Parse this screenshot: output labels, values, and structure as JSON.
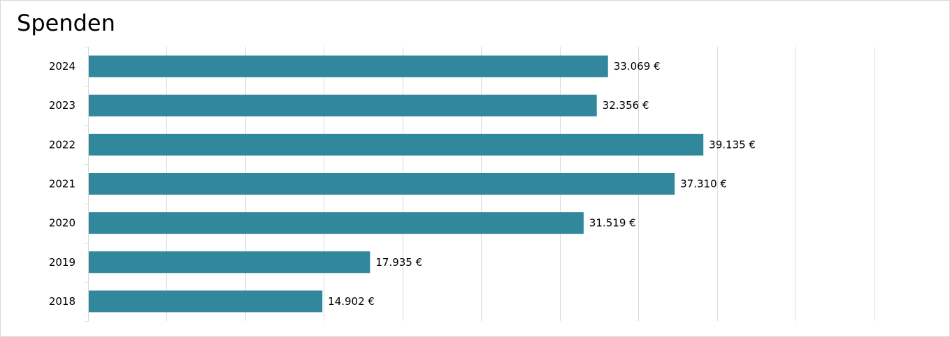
{
  "chart_data": {
    "type": "bar",
    "orientation": "horizontal",
    "title": "Spenden",
    "xlabel": "",
    "ylabel": "",
    "categories": [
      "2024",
      "2023",
      "2022",
      "2021",
      "2020",
      "2019",
      "2018"
    ],
    "values": [
      33069,
      32356,
      39135,
      37310,
      31519,
      17935,
      14902
    ],
    "data_labels": [
      "33.069 €",
      "32.356 €",
      "39.135 €",
      "37.310 €",
      "31.519 €",
      "17.935 €",
      "14.902 €"
    ],
    "xlim": [
      0,
      55000
    ],
    "grid": true,
    "legend": "none",
    "bar_color": "#31879c",
    "grid_color": "#d9d9d9"
  }
}
